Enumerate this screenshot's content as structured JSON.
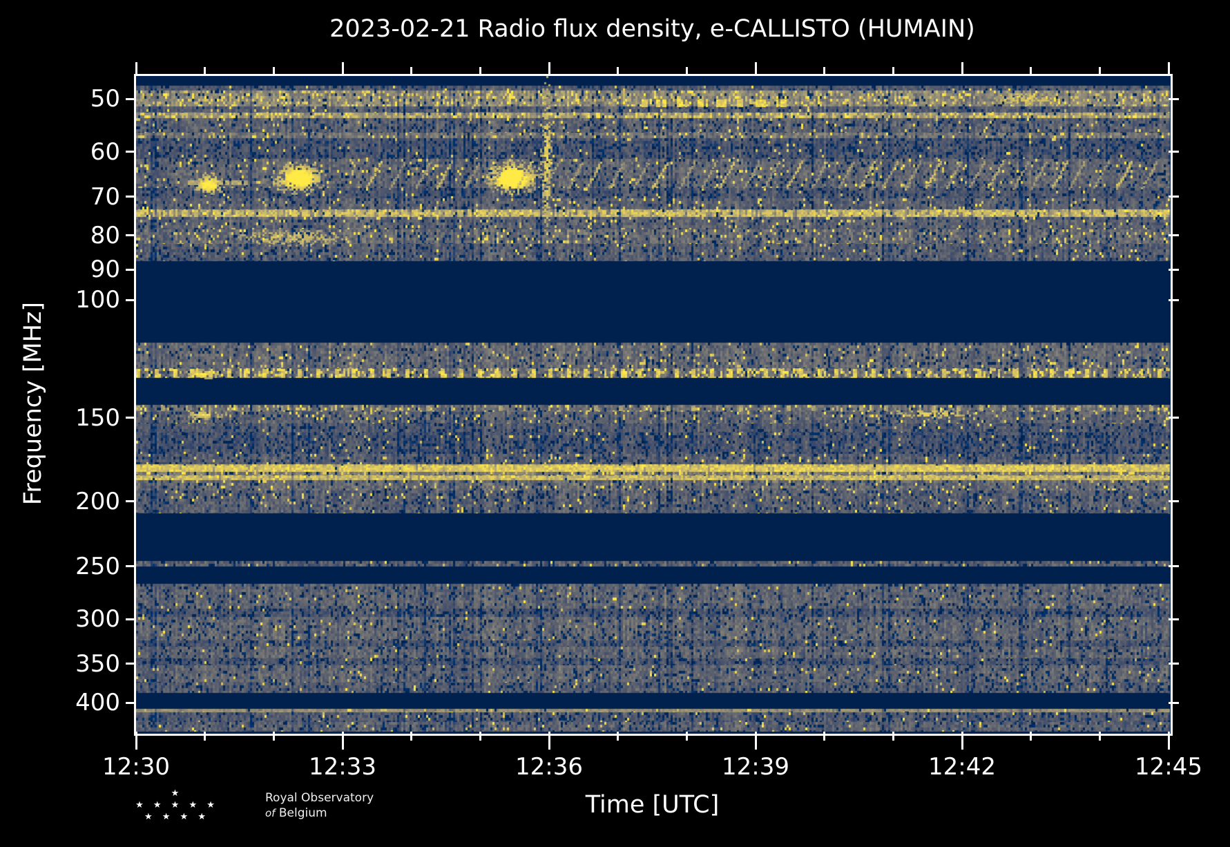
{
  "title": "2023-02-21 Radio flux density, e-CALLISTO (HUMAIN)",
  "xlabel": "Time [UTC]",
  "ylabel": "Frequency [MHz]",
  "logo": {
    "stars_row1": "★",
    "stars_row2": "★ ★ ★ ★ ★",
    "stars_row3": "★ ★ ★ ★",
    "line1": "Royal Observatory",
    "line2_italic": "of",
    "line2_rest": "Belgium"
  },
  "chart_data": {
    "type": "heatmap",
    "subtype": "radio-spectrogram",
    "title": "2023-02-21 Radio flux density, e-CALLISTO (HUMAIN)",
    "xlabel": "Time [UTC]",
    "ylabel": "Frequency [MHz]",
    "x_tick_labels": [
      "12:30",
      "12:33",
      "12:36",
      "12:39",
      "12:42",
      "12:45"
    ],
    "x_minor_ticks_per_interval": 2,
    "time_range_utc": [
      "12:30",
      "12:45"
    ],
    "y_tick_values": [
      50,
      60,
      70,
      80,
      90,
      100,
      150,
      200,
      250,
      300,
      350,
      400
    ],
    "y_scale": "log",
    "y_axis_inverted": true,
    "freq_range_mhz": [
      46.2,
      442.0
    ],
    "grid": false,
    "legend": "none",
    "background_color": "#000000",
    "plot_background_color": "#00204d",
    "colormap_stops": [
      [
        0.0,
        "#00204d"
      ],
      [
        0.12,
        "#00336f"
      ],
      [
        0.25,
        "#39486b"
      ],
      [
        0.38,
        "#575d6d"
      ],
      [
        0.5,
        "#707173"
      ],
      [
        0.62,
        "#8b8779"
      ],
      [
        0.75,
        "#a69d75"
      ],
      [
        0.85,
        "#c9b969"
      ],
      [
        0.93,
        "#e5cf5a"
      ],
      [
        1.0,
        "#ffea46"
      ]
    ],
    "bands": [
      {
        "f": [
          46.2,
          47.8
        ],
        "style": "blank"
      },
      {
        "f": [
          47.8,
          48.6
        ],
        "style": "noise",
        "level": 3.3,
        "spread": 1.6,
        "bright_p": 0.02,
        "dark_p": 0.1
      },
      {
        "f": [
          48.6,
          51.4
        ],
        "style": "noise",
        "level": 5.6,
        "spread": 2.2,
        "bright_p": 0.16,
        "dark_p": 0.05
      },
      {
        "f": [
          51.4,
          52.5
        ],
        "style": "noise",
        "level": 3.5,
        "spread": 1.6,
        "bright_p": 0.03,
        "dark_p": 0.12
      },
      {
        "f": [
          52.5,
          53.5
        ],
        "style": "noise",
        "level": 6.3,
        "spread": 2.0,
        "bright_p": 0.25,
        "dark_p": 0.03
      },
      {
        "f": [
          53.5,
          56.2
        ],
        "style": "noise",
        "level": 3.6,
        "spread": 1.7,
        "bright_p": 0.04,
        "dark_p": 0.12
      },
      {
        "f": [
          56.2,
          57.3
        ],
        "style": "noise",
        "level": 4.7,
        "spread": 1.9,
        "bright_p": 0.09,
        "dark_p": 0.06
      },
      {
        "f": [
          57.3,
          61.5
        ],
        "style": "noise",
        "level": 2.9,
        "spread": 1.5,
        "bright_p": 0.02,
        "dark_p": 0.18
      },
      {
        "f": [
          61.5,
          68.0
        ],
        "style": "noise",
        "level": 3.8,
        "spread": 1.8,
        "bright_p": 0.05,
        "dark_p": 0.1
      },
      {
        "f": [
          68.0,
          70.5
        ],
        "style": "noise",
        "level": 3.0,
        "spread": 1.5,
        "bright_p": 0.02,
        "dark_p": 0.16
      },
      {
        "f": [
          70.5,
          73.3
        ],
        "style": "noise",
        "level": 3.6,
        "spread": 1.6,
        "bright_p": 0.04,
        "dark_p": 0.1
      },
      {
        "f": [
          73.3,
          75.1
        ],
        "style": "noise",
        "level": 5.8,
        "spread": 2.3,
        "bright_p": 0.28,
        "dark_p": 0.04
      },
      {
        "f": [
          75.1,
          78.5
        ],
        "style": "noise",
        "level": 3.6,
        "spread": 1.7,
        "bright_p": 0.05,
        "dark_p": 0.1
      },
      {
        "f": [
          78.5,
          82.5
        ],
        "style": "noise",
        "level": 4.1,
        "spread": 2.0,
        "bright_p": 0.07,
        "dark_p": 0.08
      },
      {
        "f": [
          82.5,
          87.6
        ],
        "style": "noise",
        "level": 3.4,
        "spread": 1.7,
        "bright_p": 0.03,
        "dark_p": 0.12
      },
      {
        "f": [
          87.6,
          116.0
        ],
        "style": "blank"
      },
      {
        "f": [
          116.0,
          126.5
        ],
        "style": "noise",
        "level": 4.0,
        "spread": 1.8,
        "bright_p": 0.04,
        "dark_p": 0.1
      },
      {
        "f": [
          126.5,
          131.0
        ],
        "style": "noise",
        "level": 4.4,
        "spread": 2.2,
        "bright_p": 0.2,
        "dark_p": 0.06
      },
      {
        "f": [
          131.0,
          143.5
        ],
        "style": "blank"
      },
      {
        "f": [
          143.5,
          147.0
        ],
        "style": "noise",
        "level": 4.2,
        "spread": 2.0,
        "bright_p": 0.1,
        "dark_p": 0.06
      },
      {
        "f": [
          147.0,
          153.0
        ],
        "style": "noise",
        "level": 3.7,
        "spread": 1.8,
        "bright_p": 0.05,
        "dark_p": 0.1
      },
      {
        "f": [
          153.0,
          158.0
        ],
        "style": "noise",
        "level": 3.2,
        "spread": 1.6,
        "bright_p": 0.02,
        "dark_p": 0.14
      },
      {
        "f": [
          158.0,
          170.0
        ],
        "style": "noise",
        "level": 2.9,
        "spread": 1.6,
        "bright_p": 0.02,
        "dark_p": 0.2
      },
      {
        "f": [
          170.0,
          176.0
        ],
        "style": "noise",
        "level": 3.4,
        "spread": 1.7,
        "bright_p": 0.03,
        "dark_p": 0.12
      },
      {
        "f": [
          176.0,
          181.0
        ],
        "style": "noise",
        "level": 7.2,
        "spread": 1.9,
        "bright_p": 0.4,
        "dark_p": 0.02
      },
      {
        "f": [
          181.0,
          183.2
        ],
        "style": "noise",
        "level": 4.9,
        "spread": 2.0,
        "bright_p": 0.15,
        "dark_p": 0.05
      },
      {
        "f": [
          183.2,
          186.0
        ],
        "style": "noise",
        "level": 6.8,
        "spread": 2.0,
        "bright_p": 0.35,
        "dark_p": 0.03
      },
      {
        "f": [
          186.0,
          193.0
        ],
        "style": "noise",
        "level": 4.1,
        "spread": 1.9,
        "bright_p": 0.05,
        "dark_p": 0.08
      },
      {
        "f": [
          193.0,
          208.5
        ],
        "style": "noise",
        "level": 3.5,
        "spread": 1.8,
        "bright_p": 0.03,
        "dark_p": 0.12
      },
      {
        "f": [
          208.5,
          246.0
        ],
        "style": "blank"
      },
      {
        "f": [
          246.0,
          250.5
        ],
        "style": "noise",
        "level": 3.6,
        "spread": 1.7,
        "bright_p": 0.03,
        "dark_p": 0.12
      },
      {
        "f": [
          250.5,
          266.0
        ],
        "style": "blank"
      },
      {
        "f": [
          266.0,
          290.0
        ],
        "style": "noise",
        "level": 3.8,
        "spread": 1.7,
        "bright_p": 0.02,
        "dark_p": 0.12
      },
      {
        "f": [
          290.0,
          298.0
        ],
        "style": "noise",
        "level": 3.0,
        "spread": 1.5,
        "bright_p": 0.01,
        "dark_p": 0.2
      },
      {
        "f": [
          298.0,
          323.0
        ],
        "style": "noise",
        "level": 3.9,
        "spread": 1.7,
        "bright_p": 0.02,
        "dark_p": 0.12
      },
      {
        "f": [
          323.0,
          330.0
        ],
        "style": "noise",
        "level": 3.1,
        "spread": 1.5,
        "bright_p": 0.01,
        "dark_p": 0.18
      },
      {
        "f": [
          330.0,
          344.0
        ],
        "style": "noise",
        "level": 3.8,
        "spread": 1.7,
        "bright_p": 0.02,
        "dark_p": 0.12
      },
      {
        "f": [
          344.0,
          352.0
        ],
        "style": "noise",
        "level": 3.0,
        "spread": 1.5,
        "bright_p": 0.01,
        "dark_p": 0.2
      },
      {
        "f": [
          352.0,
          374.0
        ],
        "style": "noise",
        "level": 3.8,
        "spread": 1.7,
        "bright_p": 0.02,
        "dark_p": 0.12
      },
      {
        "f": [
          374.0,
          387.0
        ],
        "style": "noise",
        "level": 3.4,
        "spread": 1.7,
        "bright_p": 0.02,
        "dark_p": 0.15
      },
      {
        "f": [
          387.0,
          409.0
        ],
        "style": "blank"
      },
      {
        "f": [
          409.0,
          414.0
        ],
        "style": "noise",
        "level": 5.4,
        "spread": 1.8,
        "bright_p": 0.12,
        "dark_p": 0.05
      },
      {
        "f": [
          414.0,
          428.0
        ],
        "style": "noise",
        "level": 3.2,
        "spread": 1.6,
        "bright_p": 0.02,
        "dark_p": 0.15
      },
      {
        "f": [
          428.0,
          442.0
        ],
        "style": "noise",
        "level": 3.6,
        "spread": 1.7,
        "bright_p": 0.03,
        "dark_p": 0.12
      }
    ],
    "line_segments": [
      {
        "f": [
          50.2,
          51.3
        ],
        "t": [
          7.25,
          9.45
        ],
        "level": 8.8,
        "dash": [
          0.16,
          0.13
        ]
      },
      {
        "f": [
          66.2,
          67.2
        ],
        "t": [
          0.75,
          1.6
        ],
        "level": 7.3,
        "dash": [
          1.0,
          0.0
        ]
      },
      {
        "f": [
          73.4,
          74.9
        ],
        "t": [
          0.0,
          15.0
        ],
        "level": 8.0,
        "dash": [
          0.1,
          0.06
        ]
      },
      {
        "f": [
          127.0,
          130.5
        ],
        "t": [
          0.0,
          15.0
        ],
        "level": 8.5,
        "dash": [
          0.06,
          0.2
        ]
      },
      {
        "f": [
          144.0,
          146.5
        ],
        "t": [
          0.0,
          15.0
        ],
        "level": 7.2,
        "dash": [
          0.05,
          0.3
        ]
      },
      {
        "f": [
          177.0,
          180.5
        ],
        "t": [
          0.0,
          15.0
        ],
        "level": 8.4,
        "dash": [
          0.3,
          0.02
        ]
      },
      {
        "f": [
          183.3,
          185.6
        ],
        "t": [
          0.0,
          15.0
        ],
        "level": 8.0,
        "dash": [
          0.22,
          0.04
        ]
      },
      {
        "f": [
          409.5,
          413.5
        ],
        "t": [
          0.0,
          15.0
        ],
        "level": 6.3,
        "dash": [
          0.25,
          0.08
        ]
      }
    ],
    "bright_blobs": [
      {
        "t": 1.05,
        "f": 67.0,
        "rt": 0.18,
        "rf": 2.2,
        "gain": 1.0
      },
      {
        "t": 2.35,
        "f": 65.5,
        "rt": 0.3,
        "rf": 2.8,
        "gain": 1.2
      },
      {
        "t": 2.25,
        "f": 80.5,
        "rt": 0.8,
        "rf": 2.3,
        "gain": 0.5
      },
      {
        "t": 5.45,
        "f": 65.5,
        "rt": 0.3,
        "rf": 3.0,
        "gain": 1.3
      },
      {
        "t": 5.95,
        "f": 62.0,
        "rt": 0.07,
        "rf": 16.0,
        "gain": 0.7
      },
      {
        "t": 0.95,
        "f": 128.8,
        "rt": 0.22,
        "rf": 1.8,
        "gain": 0.9
      },
      {
        "t": 11.6,
        "f": 147.5,
        "rt": 0.5,
        "rf": 2.6,
        "gain": 0.7
      },
      {
        "t": 1.0,
        "f": 147.8,
        "rt": 0.28,
        "rf": 2.0,
        "gain": 0.7
      },
      {
        "t": 12.9,
        "f": 49.8,
        "rt": 0.45,
        "rf": 1.2,
        "gain": 0.6
      }
    ],
    "ionosonde_wisps": {
      "f_top": 61.8,
      "f_bottom": 67.8,
      "t_start": 3.35,
      "t_end": 14.9,
      "spacing": 0.31,
      "sweep_minutes": 0.22
    }
  }
}
